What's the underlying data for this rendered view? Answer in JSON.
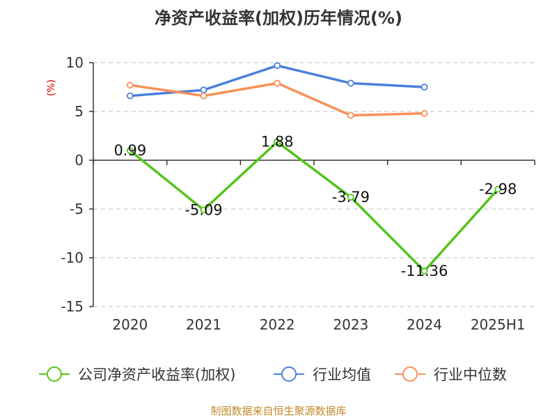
{
  "chart_data": {
    "type": "line",
    "title": "净资产收益率(加权)历年情况(%)",
    "y_unit_label": "(%)",
    "categories": [
      "2020",
      "2021",
      "2022",
      "2023",
      "2024",
      "2025H1"
    ],
    "ylim": [
      -15,
      10
    ],
    "yticks": [
      "10",
      "5",
      "0",
      "-5",
      "-10",
      "-15"
    ],
    "grid": true,
    "legend_position": "bottom",
    "series": [
      {
        "name": "公司净资产收益率(加权)",
        "color": "#52c41a",
        "values": [
          0.99,
          -5.09,
          1.88,
          -3.79,
          -11.36,
          -2.98
        ],
        "data_labels": [
          "0.99",
          "-5.09",
          "1.88",
          "-3.79",
          "-11.36",
          "-2.98"
        ]
      },
      {
        "name": "行业均值",
        "color": "#4a7fdc",
        "values": [
          6.6,
          7.2,
          9.7,
          7.9,
          7.5,
          null
        ]
      },
      {
        "name": "行业中位数",
        "color": "#f89058",
        "values": [
          7.7,
          6.6,
          7.9,
          4.6,
          4.8,
          null
        ]
      }
    ],
    "source": "制图数据来自恒生聚源数据库"
  }
}
